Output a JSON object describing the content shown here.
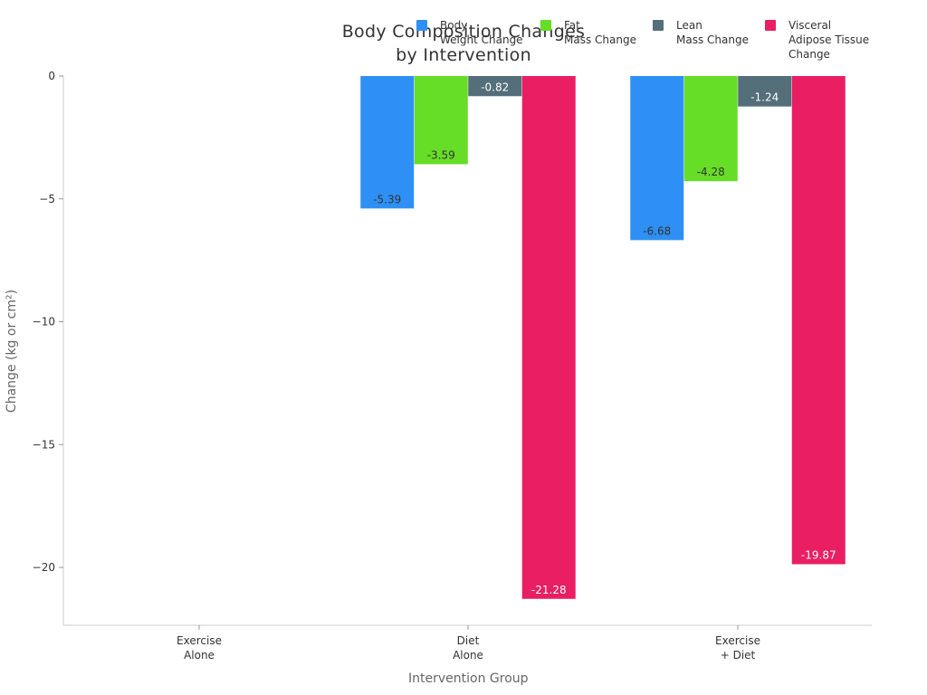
{
  "chart_data": {
    "type": "bar",
    "title_lines": [
      "Body Composition Changes",
      "by Intervention"
    ],
    "xlabel": "Intervention Group",
    "ylabel": "Change (kg or cm²)",
    "categories": [
      {
        "lines": [
          "Exercise",
          "Alone"
        ]
      },
      {
        "lines": [
          "Diet",
          "Alone"
        ]
      },
      {
        "lines": [
          "Exercise",
          "+ Diet"
        ]
      }
    ],
    "series": [
      {
        "name": "Body Weight Change",
        "legend_lines": [
          "Body",
          "Weight Change"
        ],
        "color": "#2e90f5",
        "values": [
          null,
          -5.39,
          -6.68
        ],
        "labels": [
          "",
          "-5.39",
          "-6.68"
        ],
        "label_color": "#333333"
      },
      {
        "name": "Fat Mass Change",
        "legend_lines": [
          "Fat",
          "Mass Change"
        ],
        "color": "#66dd26",
        "values": [
          null,
          -3.59,
          -4.28
        ],
        "labels": [
          "",
          "-3.59",
          "-4.28"
        ],
        "label_color": "#333333"
      },
      {
        "name": "Lean Mass Change",
        "legend_lines": [
          "Lean",
          "Mass Change"
        ],
        "color": "#546e7a",
        "values": [
          null,
          -0.82,
          -1.24
        ],
        "labels": [
          "",
          "-0.82",
          "-1.24"
        ],
        "label_color": "#ffffff"
      },
      {
        "name": "Visceral Adipose Tissue Change",
        "legend_lines": [
          "Visceral",
          "Adipose Tissue",
          "Change"
        ],
        "color": "#e91e63",
        "values": [
          null,
          -21.28,
          -19.87
        ],
        "labels": [
          "",
          "-21.28",
          "-19.87"
        ],
        "label_color": "#ffffff"
      }
    ],
    "ylim": [
      -22.4,
      0
    ],
    "yticks": [
      0,
      -5,
      -10,
      -15,
      -20
    ],
    "ytick_labels": [
      "0",
      "−5",
      "−10",
      "−15",
      "−20"
    ],
    "grid": false,
    "legend_position": "top-right"
  }
}
